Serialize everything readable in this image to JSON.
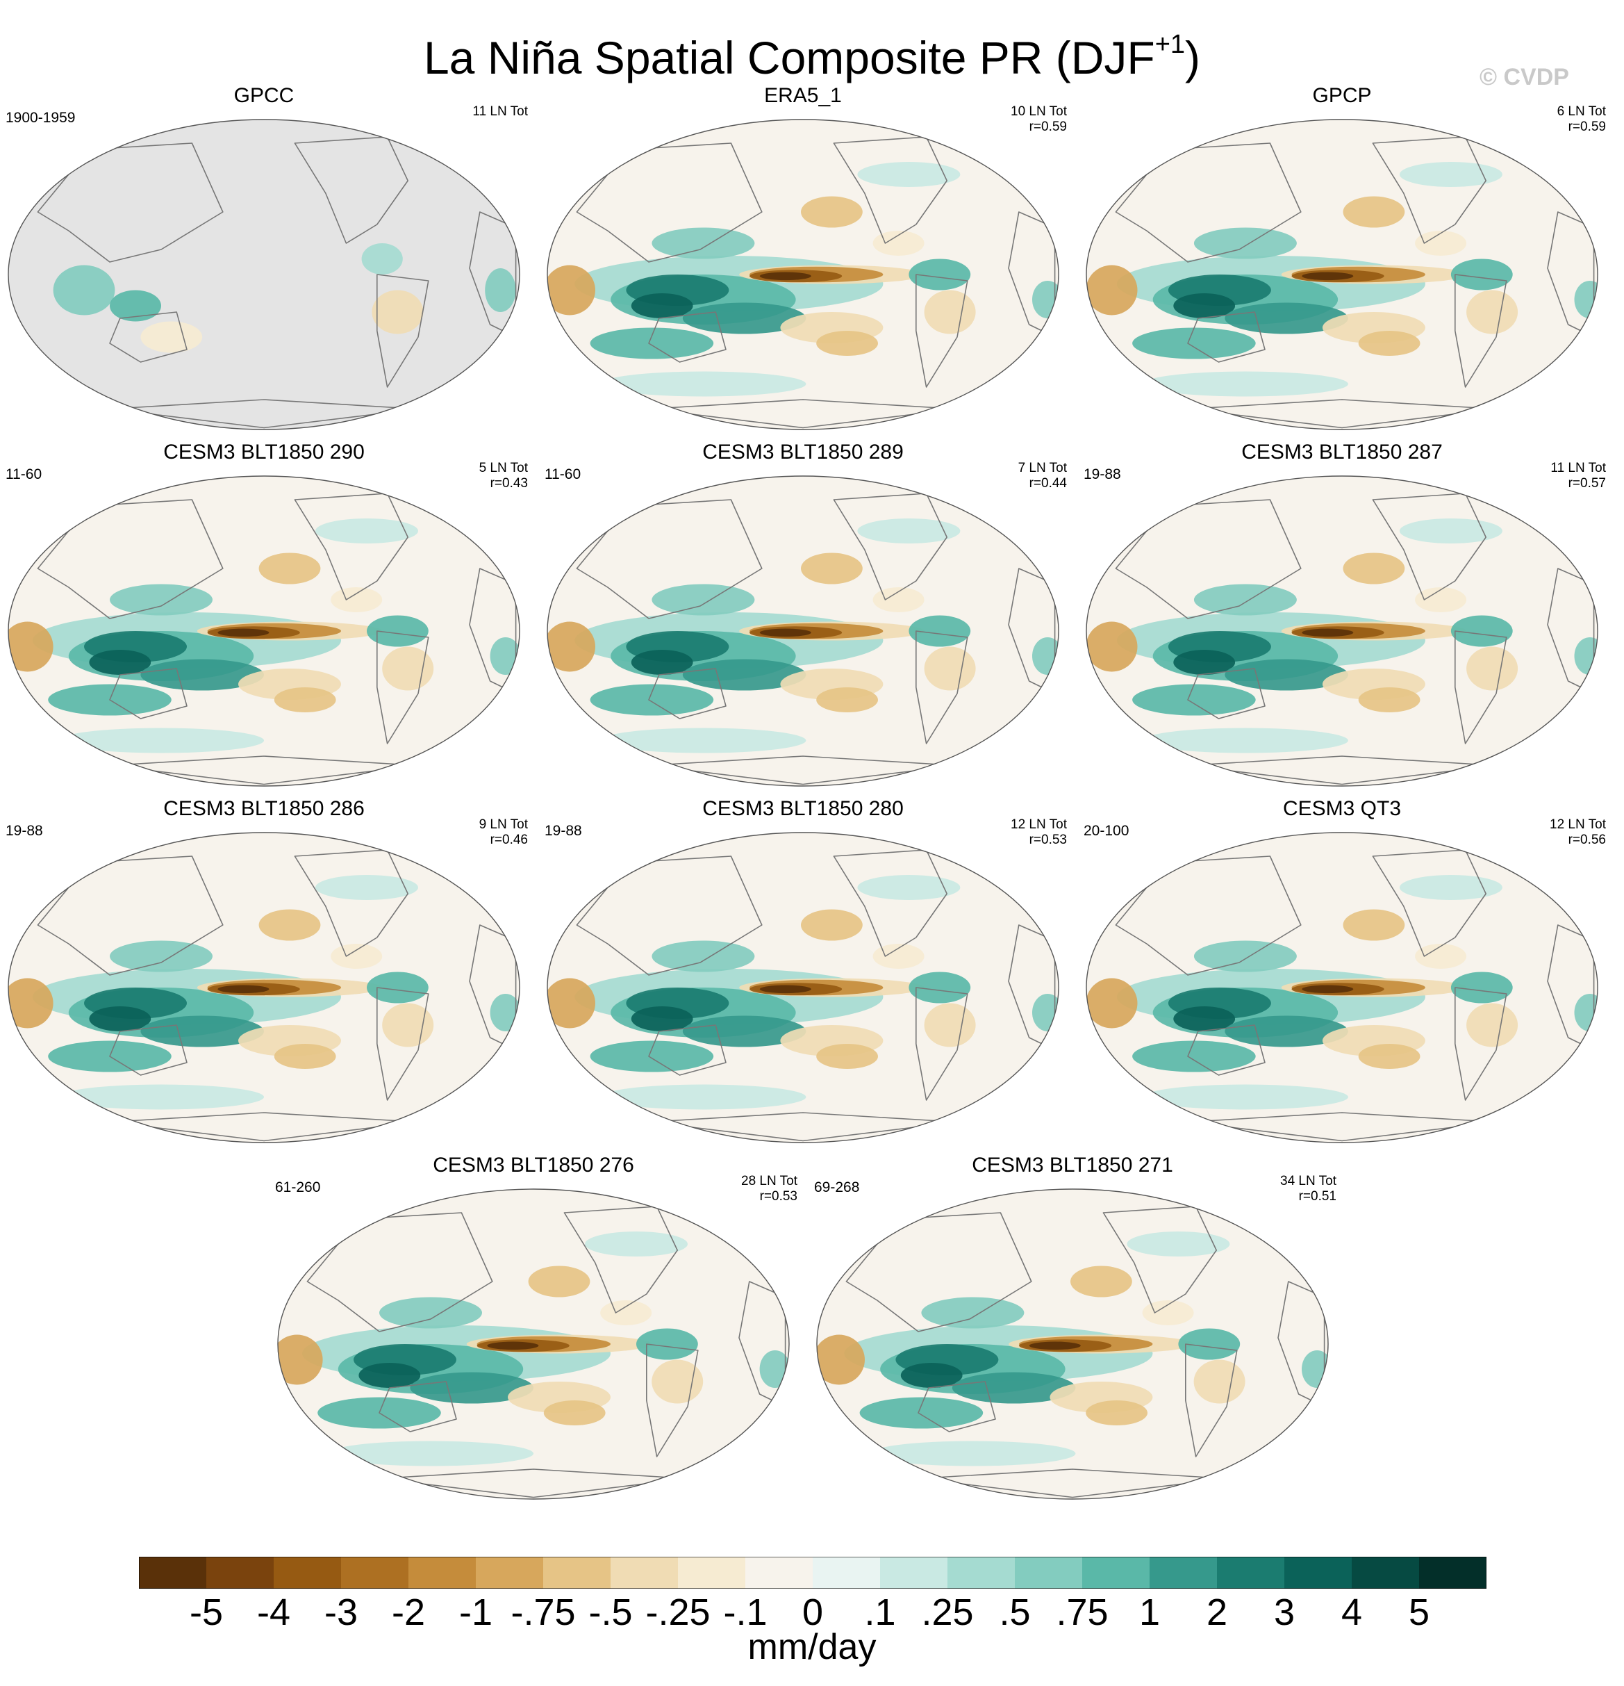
{
  "title": {
    "main": "La Niña Spatial Composite PR (DJF",
    "sup": "+1",
    "close": ")"
  },
  "credit": "© CVDP",
  "chart_data": {
    "type": "heatmap",
    "projection": "Robinson (Pacific-centered global map)",
    "variable": "Precipitation composite anomaly",
    "season": "DJF+1",
    "units": "mm/day",
    "colorbar": {
      "levels": [
        "-5",
        "-4",
        "-3",
        "-2",
        "-1",
        "-.75",
        "-.5",
        "-.25",
        "-.1",
        "0",
        ".1",
        ".25",
        ".5",
        ".75",
        "1",
        "2",
        "3",
        "4",
        "5"
      ],
      "colors": [
        "#5a3109",
        "#7a430d",
        "#965a12",
        "#ad7022",
        "#c58c3b",
        "#d7a75c",
        "#e6c486",
        "#f0dcb4",
        "#f6ebd2",
        "#f7f3ec",
        "#e9f4f2",
        "#c9e9e3",
        "#a5dbd1",
        "#83ccbf",
        "#5ab8a8",
        "#36998c",
        "#1b7c70",
        "#0b6259",
        "#064a42",
        "#032f29"
      ]
    },
    "panels": [
      {
        "name": "GPCC",
        "years": "1900-1959",
        "count": "11 LN Tot",
        "r": "",
        "pattern": "land"
      },
      {
        "name": "ERA5_1",
        "years": "",
        "count": "10 LN Tot",
        "r": "r=0.59",
        "pattern": "full"
      },
      {
        "name": "GPCP",
        "years": "",
        "count": "6 LN Tot",
        "r": "r=0.59",
        "pattern": "full"
      },
      {
        "name": "CESM3 BLT1850 290",
        "years": "11-60",
        "count": "5 LN Tot",
        "r": "r=0.43",
        "pattern": "full"
      },
      {
        "name": "CESM3 BLT1850 289",
        "years": "11-60",
        "count": "7 LN Tot",
        "r": "r=0.44",
        "pattern": "full"
      },
      {
        "name": "CESM3 BLT1850 287",
        "years": "19-88",
        "count": "11 LN Tot",
        "r": "r=0.57",
        "pattern": "full"
      },
      {
        "name": "CESM3 BLT1850 286",
        "years": "19-88",
        "count": "9 LN Tot",
        "r": "r=0.46",
        "pattern": "full"
      },
      {
        "name": "CESM3 BLT1850 280",
        "years": "19-88",
        "count": "12 LN Tot",
        "r": "r=0.53",
        "pattern": "full"
      },
      {
        "name": "CESM3 QT3",
        "years": "20-100",
        "count": "12 LN Tot",
        "r": "r=0.56",
        "pattern": "full"
      },
      {
        "name": "CESM3 BLT1850 276",
        "years": "61-260",
        "count": "28 LN Tot",
        "r": "r=0.53",
        "pattern": "full"
      },
      {
        "name": "CESM3 BLT1850 271",
        "years": "69-268",
        "count": "34 LN Tot",
        "r": "r=0.51",
        "pattern": "full"
      }
    ]
  }
}
